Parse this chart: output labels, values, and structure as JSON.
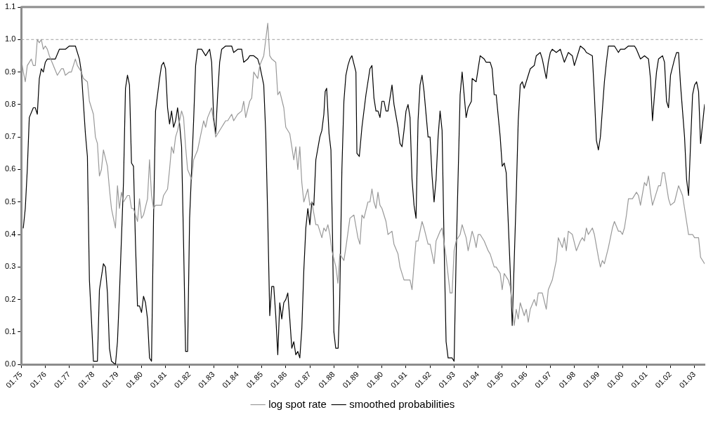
{
  "chart_data": {
    "type": "line",
    "xlim": [
      "1975-01",
      "2003-06"
    ],
    "ylim": [
      0,
      1.1
    ],
    "xticks": [
      {
        "value": "1975-01",
        "label": "01.75"
      },
      {
        "value": "1976-01",
        "label": "01.76"
      },
      {
        "value": "1977-01",
        "label": "01.77"
      },
      {
        "value": "1978-01",
        "label": "01.78"
      },
      {
        "value": "1979-01",
        "label": "01.79"
      },
      {
        "value": "1980-01",
        "label": "01.80"
      },
      {
        "value": "1981-01",
        "label": "01.81"
      },
      {
        "value": "1982-01",
        "label": "01.82"
      },
      {
        "value": "1983-01",
        "label": "01.83"
      },
      {
        "value": "1984-01",
        "label": "01.84"
      },
      {
        "value": "1985-01",
        "label": "01.85"
      },
      {
        "value": "1986-01",
        "label": "01.86"
      },
      {
        "value": "1987-01",
        "label": "01.87"
      },
      {
        "value": "1988-01",
        "label": "01.88"
      },
      {
        "value": "1989-01",
        "label": "01.89"
      },
      {
        "value": "1990-01",
        "label": "01.90"
      },
      {
        "value": "1991-01",
        "label": "01.91"
      },
      {
        "value": "1992-01",
        "label": "01.92"
      },
      {
        "value": "1993-01",
        "label": "01.93"
      },
      {
        "value": "1994-01",
        "label": "01.94"
      },
      {
        "value": "1995-01",
        "label": "01.95"
      },
      {
        "value": "1996-01",
        "label": "01.96"
      },
      {
        "value": "1997-01",
        "label": "01.97"
      },
      {
        "value": "1998-01",
        "label": "01.98"
      },
      {
        "value": "1999-01",
        "label": "01.99"
      },
      {
        "value": "2000-01",
        "label": "01.00"
      },
      {
        "value": "2001-01",
        "label": "01.01"
      },
      {
        "value": "2002-01",
        "label": "01.02"
      },
      {
        "value": "2003-01",
        "label": "01.03"
      }
    ],
    "yticks": [
      {
        "value": 0,
        "label": "0.0"
      },
      {
        "value": 0.1,
        "label": "0.1"
      },
      {
        "value": 0.2,
        "label": "0.2"
      },
      {
        "value": 0.3,
        "label": "0.3"
      },
      {
        "value": 0.4,
        "label": "0.4"
      },
      {
        "value": 0.5,
        "label": "0.5"
      },
      {
        "value": 0.6,
        "label": "0.6"
      },
      {
        "value": 0.7,
        "label": "0.7"
      },
      {
        "value": 0.8,
        "label": "0.8"
      },
      {
        "value": 0.9,
        "label": "0.9"
      },
      {
        "value": 1,
        "label": "1.0"
      },
      {
        "value": 1.1,
        "label": "1.1"
      }
    ],
    "grid": false,
    "legend": "bottom",
    "marker": "none",
    "line_style": "solid",
    "ref_lines": [
      {
        "axis": "y",
        "value": 1,
        "color": "#a0a0a0",
        "line_style": "dashed"
      }
    ],
    "series": [
      {
        "name": "log spot rate",
        "color": "#999999",
        "x": [
          "1975-01",
          "1975-02",
          "1975-03",
          "1975-04",
          "1975-06",
          "1975-07",
          "1975-08",
          "1975-09",
          "1975-10",
          "1975-11",
          "1975-12",
          "1976-01",
          "1976-02",
          "1976-03",
          "1976-05",
          "1976-07",
          "1976-09",
          "1976-10",
          "1976-11",
          "1977-01",
          "1977-02",
          "1977-04",
          "1977-05",
          "1977-07",
          "1977-08",
          "1977-10",
          "1977-11",
          "1978-01",
          "1978-02",
          "1978-03",
          "1978-04",
          "1978-05",
          "1978-06",
          "1978-08",
          "1978-09",
          "1978-10",
          "1978-12",
          "1979-01",
          "1979-02",
          "1979-03",
          "1979-04",
          "1979-06",
          "1979-07",
          "1979-08",
          "1979-09",
          "1979-11",
          "1979-12",
          "1980-01",
          "1980-02",
          "1980-04",
          "1980-05",
          "1980-06",
          "1980-07",
          "1980-08",
          "1980-11",
          "1980-12",
          "1981-02",
          "1981-03",
          "1981-04",
          "1981-05",
          "1981-06",
          "1981-07",
          "1981-09",
          "1981-10",
          "1981-11",
          "1981-12",
          "1982-02",
          "1982-03",
          "1982-05",
          "1982-06",
          "1982-08",
          "1982-09",
          "1982-10",
          "1982-12",
          "1983-02",
          "1983-03",
          "1983-05",
          "1983-06",
          "1983-07",
          "1983-08",
          "1983-10",
          "1983-11",
          "1984-01",
          "1984-03",
          "1984-04",
          "1984-05",
          "1984-07",
          "1984-08",
          "1984-09",
          "1984-11",
          "1984-12",
          "1985-02",
          "1985-03",
          "1985-04",
          "1985-05",
          "1985-06",
          "1985-08",
          "1985-09",
          "1985-10",
          "1985-12",
          "1986-01",
          "1986-03",
          "1986-05",
          "1986-06",
          "1986-07",
          "1986-08",
          "1986-09",
          "1986-10",
          "1986-12",
          "1987-01",
          "1987-02",
          "1987-04",
          "1987-05",
          "1987-07",
          "1987-08",
          "1987-09",
          "1987-10",
          "1987-11",
          "1987-12",
          "1988-02",
          "1988-03",
          "1988-04",
          "1988-06",
          "1988-07",
          "1988-09",
          "1988-11",
          "1989-01",
          "1989-02",
          "1989-03",
          "1989-04",
          "1989-06",
          "1989-07",
          "1989-08",
          "1989-09",
          "1989-10",
          "1989-11",
          "1989-12",
          "1990-01",
          "1990-03",
          "1990-04",
          "1990-06",
          "1990-07",
          "1990-09",
          "1990-10",
          "1990-12",
          "1991-01",
          "1991-03",
          "1991-04",
          "1991-05",
          "1991-06",
          "1991-07",
          "1991-09",
          "1991-10",
          "1991-12",
          "1992-01",
          "1992-03",
          "1992-04",
          "1992-06",
          "1992-07",
          "1992-09",
          "1992-11",
          "1992-12",
          "1993-01",
          "1993-02",
          "1993-04",
          "1993-05",
          "1993-07",
          "1993-08",
          "1993-09",
          "1993-10",
          "1993-11",
          "1993-12",
          "1994-01",
          "1994-02",
          "1994-04",
          "1994-06",
          "1994-07",
          "1994-09",
          "1994-10",
          "1994-12",
          "1995-01",
          "1995-02",
          "1995-04",
          "1995-05",
          "1995-07",
          "1995-08",
          "1995-09",
          "1995-10",
          "1995-12",
          "1996-01",
          "1996-02",
          "1996-03",
          "1996-05",
          "1996-06",
          "1996-07",
          "1996-09",
          "1996-11",
          "1996-12",
          "1997-02",
          "1997-04",
          "1997-05",
          "1997-07",
          "1997-08",
          "1997-09",
          "1997-10",
          "1997-12",
          "1998-02",
          "1998-04",
          "1998-05",
          "1998-06",
          "1998-07",
          "1998-08",
          "1998-10",
          "1998-11",
          "1999-01",
          "1999-02",
          "1999-03",
          "1999-04",
          "1999-06",
          "1999-08",
          "1999-09",
          "1999-11",
          "1999-12",
          "2000-01",
          "2000-02",
          "2000-03",
          "2000-04",
          "2000-06",
          "2000-08",
          "2000-09",
          "2000-10",
          "2000-12",
          "2001-01",
          "2001-02",
          "2001-03",
          "2001-04",
          "2001-05",
          "2001-07",
          "2001-08",
          "2001-09",
          "2001-10",
          "2001-12",
          "2002-01",
          "2002-03",
          "2002-05",
          "2002-07",
          "2002-08",
          "2002-09",
          "2002-10",
          "2002-12",
          "2003-01",
          "2003-03",
          "2003-04",
          "2003-06"
        ],
        "values": [
          0.94,
          0.9,
          0.87,
          0.92,
          0.94,
          0.92,
          0.92,
          1,
          0.99,
          1,
          0.97,
          0.98,
          0.97,
          0.95,
          0.92,
          0.89,
          0.91,
          0.91,
          0.89,
          0.9,
          0.9,
          0.94,
          0.92,
          0.9,
          0.88,
          0.87,
          0.81,
          0.77,
          0.7,
          0.68,
          0.58,
          0.6,
          0.66,
          0.61,
          0.54,
          0.48,
          0.42,
          0.55,
          0.48,
          0.53,
          0.5,
          0.52,
          0.52,
          0.48,
          0.48,
          0.44,
          0.51,
          0.45,
          0.46,
          0.51,
          0.63,
          0.52,
          0.48,
          0.49,
          0.49,
          0.52,
          0.54,
          0.6,
          0.67,
          0.65,
          0.7,
          0.72,
          0.78,
          0.76,
          0.67,
          0.6,
          0.57,
          0.63,
          0.66,
          0.69,
          0.75,
          0.73,
          0.76,
          0.79,
          0.7,
          0.71,
          0.73,
          0.74,
          0.75,
          0.75,
          0.77,
          0.75,
          0.77,
          0.78,
          0.81,
          0.76,
          0.81,
          0.82,
          0.9,
          0.88,
          0.92,
          0.95,
          1,
          1.05,
          0.95,
          0.94,
          0.93,
          0.83,
          0.84,
          0.79,
          0.73,
          0.71,
          0.63,
          0.67,
          0.6,
          0.67,
          0.56,
          0.5,
          0.54,
          0.49,
          0.5,
          0.43,
          0.43,
          0.39,
          0.42,
          0.41,
          0.43,
          0.4,
          0.35,
          0.3,
          0.25,
          0.34,
          0.32,
          0.36,
          0.45,
          0.46,
          0.39,
          0.37,
          0.46,
          0.45,
          0.5,
          0.5,
          0.54,
          0.5,
          0.48,
          0.53,
          0.49,
          0.48,
          0.44,
          0.4,
          0.41,
          0.37,
          0.34,
          0.3,
          0.26,
          0.26,
          0.26,
          0.23,
          0.31,
          0.38,
          0.38,
          0.44,
          0.42,
          0.37,
          0.37,
          0.31,
          0.38,
          0.41,
          0.42,
          0.33,
          0.22,
          0.22,
          0.35,
          0.38,
          0.4,
          0.43,
          0.39,
          0.35,
          0.38,
          0.41,
          0.39,
          0.36,
          0.4,
          0.4,
          0.38,
          0.35,
          0.34,
          0.3,
          0.3,
          0.28,
          0.23,
          0.28,
          0.26,
          0.24,
          0.12,
          0.17,
          0.14,
          0.19,
          0.15,
          0.17,
          0.13,
          0.17,
          0.2,
          0.18,
          0.22,
          0.22,
          0.17,
          0.23,
          0.26,
          0.32,
          0.39,
          0.36,
          0.39,
          0.35,
          0.41,
          0.4,
          0.35,
          0.38,
          0.39,
          0.38,
          0.42,
          0.4,
          0.42,
          0.4,
          0.33,
          0.3,
          0.32,
          0.31,
          0.36,
          0.42,
          0.44,
          0.41,
          0.41,
          0.4,
          0.42,
          0.46,
          0.51,
          0.51,
          0.53,
          0.52,
          0.49,
          0.56,
          0.55,
          0.58,
          0.53,
          0.49,
          0.51,
          0.55,
          0.55,
          0.59,
          0.59,
          0.51,
          0.49,
          0.5,
          0.55,
          0.52,
          0.48,
          0.44,
          0.4,
          0.4,
          0.39,
          0.39,
          0.33,
          0.31
        ]
      },
      {
        "name": "smoothed probabilities",
        "color": "#000000",
        "x": [
          "1975-02",
          "1975-03",
          "1975-04",
          "1975-05",
          "1975-07",
          "1975-08",
          "1975-09",
          "1975-10",
          "1975-11",
          "1975-12",
          "1976-01",
          "1976-02",
          "1976-06",
          "1976-08",
          "1976-10",
          "1976-11",
          "1977-01",
          "1977-04",
          "1977-06",
          "1977-07",
          "1977-09",
          "1977-10",
          "1977-11",
          "1977-12",
          "1978-01",
          "1978-03",
          "1978-04",
          "1978-06",
          "1978-07",
          "1978-08",
          "1978-09",
          "1978-10",
          "1978-12",
          "1979-01",
          "1979-02",
          "1979-04",
          "1979-05",
          "1979-06",
          "1979-07",
          "1979-08",
          "1979-09",
          "1979-10",
          "1979-11",
          "1979-12",
          "1980-01",
          "1980-02",
          "1980-03",
          "1980-04",
          "1980-05",
          "1980-06",
          "1980-07",
          "1980-08",
          "1980-10",
          "1980-11",
          "1980-12",
          "1981-01",
          "1981-02",
          "1981-03",
          "1981-04",
          "1981-05",
          "1981-06",
          "1981-07",
          "1981-08",
          "1981-09",
          "1981-10",
          "1981-11",
          "1981-12",
          "1982-01",
          "1982-03",
          "1982-04",
          "1982-05",
          "1982-07",
          "1982-09",
          "1982-11",
          "1982-12",
          "1983-01",
          "1983-02",
          "1983-03",
          "1983-04",
          "1983-05",
          "1983-07",
          "1983-10",
          "1983-11",
          "1984-01",
          "1984-03",
          "1984-04",
          "1984-06",
          "1984-07",
          "1984-09",
          "1984-11",
          "1984-12",
          "1985-02",
          "1985-03",
          "1985-04",
          "1985-05",
          "1985-06",
          "1985-07",
          "1985-08",
          "1985-09",
          "1985-10",
          "1985-11",
          "1985-12",
          "1986-01",
          "1986-02",
          "1986-03",
          "1986-04",
          "1986-05",
          "1986-06",
          "1986-07",
          "1986-08",
          "1986-09",
          "1986-10",
          "1986-11",
          "1986-12",
          "1987-01",
          "1987-02",
          "1987-03",
          "1987-04",
          "1987-06",
          "1987-07",
          "1987-08",
          "1987-08-21",
          "1987-09-13",
          "1987-10-19",
          "1987-11-17",
          "1987-12-13",
          "1988-01-01",
          "1988-01-29",
          "1988-03-05",
          "1988-03-27",
          "1988-05",
          "1988-06",
          "1988-07",
          "1988-08",
          "1988-09",
          "1988-10",
          "1988-12",
          "1988-12-16",
          "1989-01-22",
          "1989-03",
          "1989-05",
          "1989-06",
          "1989-07",
          "1989-08",
          "1989-09",
          "1989-10",
          "1989-11",
          "1989-12",
          "1990-01",
          "1990-02",
          "1990-03",
          "1990-04",
          "1990-06",
          "1990-07",
          "1990-09",
          "1990-10",
          "1990-11",
          "1990-12",
          "1991-01",
          "1991-02",
          "1991-03",
          "1991-04",
          "1991-05",
          "1991-06",
          "1991-07",
          "1991-08",
          "1991-09",
          "1991-10",
          "1991-12",
          "1992-01",
          "1992-02",
          "1992-03",
          "1992-04",
          "1992-05",
          "1992-06",
          "1992-07",
          "1992-08",
          "1992-09",
          "1992-10",
          "1992-12",
          "1993-01",
          "1993-02",
          "1993-04",
          "1993-05",
          "1993-06",
          "1993-07",
          "1993-08",
          "1993-09-20",
          "1993-10",
          "1993-12",
          "1994-01",
          "1994-02",
          "1994-04",
          "1994-05",
          "1994-07",
          "1994-08",
          "1994-09",
          "1994-10",
          "1994-12",
          "1995-01",
          "1995-02",
          "1995-03",
          "1995-05",
          "1995-06",
          "1995-08",
          "1995-09",
          "1995-10",
          "1995-11",
          "1995-12",
          "1996-02",
          "1996-03",
          "1996-05",
          "1996-06",
          "1996-08",
          "1996-09",
          "1996-11",
          "1996-12",
          "1997-01",
          "1997-02",
          "1997-04",
          "1997-06",
          "1997-07",
          "1997-08",
          "1997-10",
          "1997-12",
          "1998-01",
          "1998-02",
          "1998-04",
          "1998-06",
          "1998-07",
          "1998-10",
          "1998-11",
          "1998-12",
          "1999-01",
          "1999-02",
          "1999-04",
          "1999-05",
          "1999-06",
          "1999-09",
          "1999-11",
          "1999-12",
          "2000-02",
          "2000-04",
          "2000-07",
          "2000-08",
          "2000-10",
          "2000-12",
          "2001-02",
          "2001-03",
          "2001-04",
          "2001-05",
          "2001-06",
          "2001-07",
          "2001-09",
          "2001-10",
          "2001-11",
          "2001-12",
          "2002-01",
          "2002-03",
          "2002-04",
          "2002-05",
          "2002-06",
          "2002-08",
          "2002-09",
          "2002-10",
          "2002-11",
          "2002-12",
          "2003-01",
          "2003-02",
          "2003-03",
          "2003-04",
          "2003-06"
        ],
        "values": [
          0.42,
          0.48,
          0.6,
          0.76,
          0.79,
          0.79,
          0.77,
          0.88,
          0.91,
          0.9,
          0.93,
          0.94,
          0.94,
          0.97,
          0.97,
          0.97,
          0.98,
          0.98,
          0.94,
          0.9,
          0.71,
          0.64,
          0.26,
          0.14,
          0.01,
          0.01,
          0.23,
          0.31,
          0.3,
          0.22,
          0.05,
          0.01,
          0,
          0.07,
          0.22,
          0.56,
          0.85,
          0.89,
          0.86,
          0.62,
          0.61,
          0.37,
          0.18,
          0.18,
          0.16,
          0.21,
          0.19,
          0.14,
          0.02,
          0.01,
          0.45,
          0.78,
          0.88,
          0.92,
          0.93,
          0.91,
          0.79,
          0.74,
          0.78,
          0.73,
          0.75,
          0.79,
          0.74,
          0.67,
          0.37,
          0.04,
          0.04,
          0.45,
          0.75,
          0.92,
          0.97,
          0.97,
          0.95,
          0.97,
          0.93,
          0.76,
          0.71,
          0.83,
          0.93,
          0.97,
          0.98,
          0.98,
          0.96,
          0.97,
          0.97,
          0.93,
          0.94,
          0.95,
          0.95,
          0.94,
          0.92,
          0.86,
          0.71,
          0.45,
          0.15,
          0.24,
          0.24,
          0.15,
          0.03,
          0.19,
          0.14,
          0.19,
          0.2,
          0.22,
          0.14,
          0.05,
          0.07,
          0.03,
          0.04,
          0.02,
          0.11,
          0.29,
          0.42,
          0.48,
          0.43,
          0.5,
          0.49,
          0.63,
          0.7,
          0.72,
          0.77,
          0.84,
          0.85,
          0.71,
          0.66,
          0.37,
          0.1,
          0.05,
          0.05,
          0.18,
          0.6,
          0.81,
          0.89,
          0.92,
          0.94,
          0.95,
          0.9,
          0.65,
          0.64,
          0.73,
          0.83,
          0.87,
          0.91,
          0.92,
          0.82,
          0.78,
          0.78,
          0.76,
          0.81,
          0.81,
          0.78,
          0.78,
          0.86,
          0.8,
          0.73,
          0.68,
          0.67,
          0.72,
          0.78,
          0.8,
          0.76,
          0.57,
          0.49,
          0.45,
          0.75,
          0.86,
          0.89,
          0.84,
          0.7,
          0.7,
          0.58,
          0.5,
          0.57,
          0.7,
          0.78,
          0.72,
          0.37,
          0.07,
          0.02,
          0.02,
          0.01,
          0.33,
          0.83,
          0.9,
          0.83,
          0.76,
          0.79,
          0.81,
          0.88,
          0.87,
          0.91,
          0.95,
          0.94,
          0.93,
          0.93,
          0.91,
          0.83,
          0.83,
          0.7,
          0.61,
          0.62,
          0.59,
          0.29,
          0.12,
          0.52,
          0.75,
          0.86,
          0.87,
          0.85,
          0.89,
          0.91,
          0.92,
          0.95,
          0.96,
          0.94,
          0.88,
          0.93,
          0.96,
          0.97,
          0.96,
          0.97,
          0.95,
          0.93,
          0.96,
          0.95,
          0.92,
          0.94,
          0.98,
          0.97,
          0.96,
          0.95,
          0.83,
          0.69,
          0.66,
          0.7,
          0.87,
          0.93,
          0.98,
          0.98,
          0.96,
          0.97,
          0.97,
          0.98,
          0.98,
          0.97,
          0.94,
          0.95,
          0.94,
          0.88,
          0.75,
          0.83,
          0.9,
          0.94,
          0.95,
          0.93,
          0.81,
          0.79,
          0.89,
          0.94,
          0.96,
          0.96,
          0.86,
          0.7,
          0.57,
          0.52,
          0.68,
          0.83,
          0.86,
          0.87,
          0.84,
          0.68,
          0.8
        ]
      }
    ]
  }
}
